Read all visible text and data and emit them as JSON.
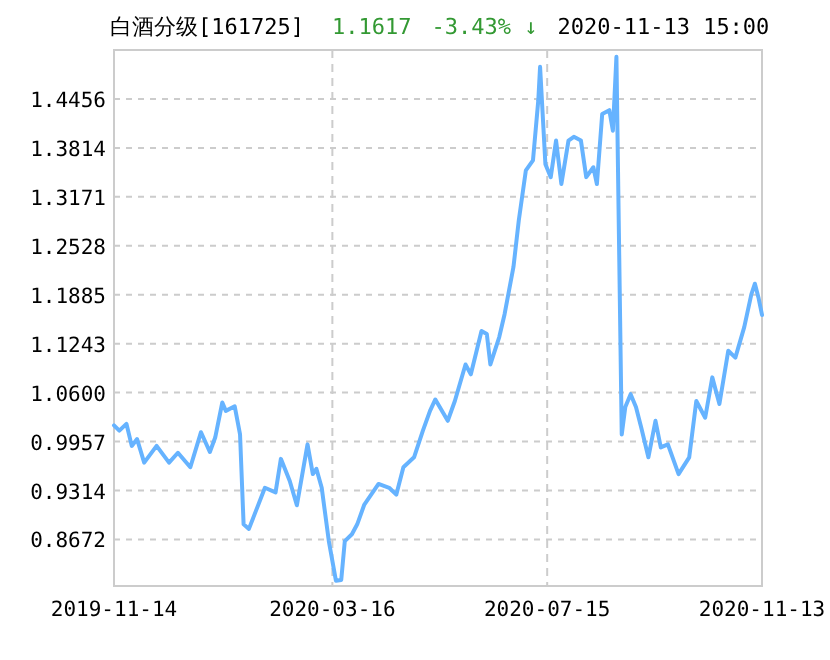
{
  "chart_data": {
    "type": "line",
    "title": "白酒分级[161725]",
    "annotations": [
      "1.1617",
      "-3.43% ↓",
      "2020-11-13 15:00"
    ],
    "x": [
      "2019-11-14",
      "2019-11-17",
      "2019-11-21",
      "2019-11-24",
      "2019-11-27",
      "2019-12-01",
      "2019-12-08",
      "2019-12-15",
      "2019-12-20",
      "2019-12-27",
      "2020-01-02",
      "2020-01-07",
      "2020-01-10",
      "2020-01-14",
      "2020-01-16",
      "2020-01-21",
      "2020-01-24",
      "2020-01-26",
      "2020-01-29",
      "2020-02-02",
      "2020-02-07",
      "2020-02-13",
      "2020-02-16",
      "2020-02-21",
      "2020-02-25",
      "2020-03-02",
      "2020-03-05",
      "2020-03-07",
      "2020-03-10",
      "2020-03-14",
      "2020-03-18",
      "2020-03-21",
      "2020-03-23",
      "2020-03-27",
      "2020-03-30",
      "2020-04-03",
      "2020-04-11",
      "2020-04-17",
      "2020-04-21",
      "2020-04-25",
      "2020-05-01",
      "2020-05-06",
      "2020-05-10",
      "2020-05-13",
      "2020-05-20",
      "2020-05-24",
      "2020-05-30",
      "2020-06-02",
      "2020-06-08",
      "2020-06-11",
      "2020-06-13",
      "2020-06-18",
      "2020-06-21",
      "2020-06-26",
      "2020-06-29",
      "2020-07-03",
      "2020-07-07",
      "2020-07-10",
      "2020-07-11",
      "2020-07-14",
      "2020-07-17",
      "2020-07-20",
      "2020-07-23",
      "2020-07-27",
      "2020-07-30",
      "2020-08-03",
      "2020-08-06",
      "2020-08-10",
      "2020-08-12",
      "2020-08-15",
      "2020-08-19",
      "2020-08-21",
      "2020-08-23",
      "2020-08-26",
      "2020-08-28",
      "2020-08-31",
      "2020-09-03",
      "2020-09-06",
      "2020-09-10",
      "2020-09-14",
      "2020-09-17",
      "2020-09-21",
      "2020-09-27",
      "2020-10-03",
      "2020-10-07",
      "2020-10-12",
      "2020-10-16",
      "2020-10-20",
      "2020-10-25",
      "2020-10-29",
      "2020-11-03",
      "2020-11-07",
      "2020-11-09",
      "2020-11-11",
      "2020-11-13"
    ],
    "values": [
      1.017,
      1.01,
      1.019,
      0.99,
      0.999,
      0.968,
      0.99,
      0.968,
      0.981,
      0.962,
      1.008,
      0.982,
      1.001,
      1.047,
      1.036,
      1.042,
      1.005,
      0.887,
      0.881,
      0.905,
      0.935,
      0.929,
      0.973,
      0.944,
      0.912,
      0.992,
      0.953,
      0.96,
      0.935,
      0.865,
      0.813,
      0.814,
      0.865,
      0.874,
      0.887,
      0.913,
      0.94,
      0.935,
      0.926,
      0.962,
      0.975,
      1.01,
      1.036,
      1.051,
      1.023,
      1.049,
      1.097,
      1.084,
      1.141,
      1.137,
      1.097,
      1.133,
      1.163,
      1.225,
      1.286,
      1.352,
      1.365,
      1.444,
      1.488,
      1.36,
      1.343,
      1.391,
      1.334,
      1.391,
      1.396,
      1.391,
      1.343,
      1.356,
      1.334,
      1.426,
      1.431,
      1.404,
      1.501,
      1.005,
      1.041,
      1.058,
      1.041,
      1.014,
      0.975,
      1.023,
      0.988,
      0.992,
      0.953,
      0.975,
      1.049,
      1.027,
      1.08,
      1.045,
      1.115,
      1.106,
      1.146,
      1.189,
      1.203,
      1.185,
      1.162
    ],
    "color": "#66b3ff",
    "xlim": [
      "2019-11-14",
      "2020-11-13"
    ],
    "xticks": [
      "2019-11-14",
      "2020-03-16",
      "2020-07-15",
      "2020-11-13"
    ],
    "ylim": [
      0.806,
      1.51
    ],
    "yticks": [
      1.4456,
      1.3814,
      1.3171,
      1.2528,
      1.1885,
      1.1243,
      {
        "value": 1.06,
        "label": "1.0600"
      },
      0.9957,
      0.9314,
      0.8672
    ],
    "grid": true
  }
}
